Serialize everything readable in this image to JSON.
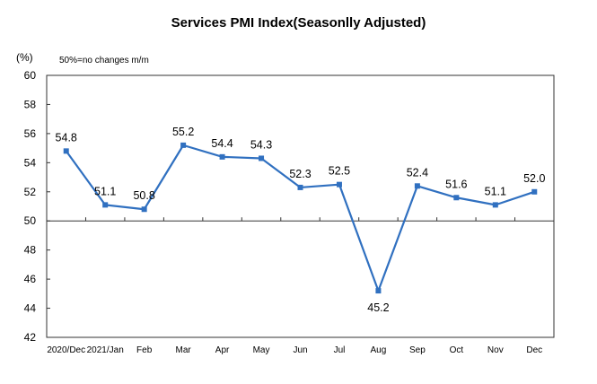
{
  "chart_data": {
    "type": "line",
    "title": "Services PMI Index(Seasonlly Adjusted)",
    "ylabel": "(%)",
    "xlabel": "",
    "annotation": "50%=no changes  m/m",
    "categories": [
      "2020/Dec",
      "2021/Jan",
      "Feb",
      "Mar",
      "Apr",
      "May",
      "Jun",
      "Jul",
      "Aug",
      "Sep",
      "Oct",
      "Nov",
      "Dec"
    ],
    "series": [
      {
        "name": "Services PMI",
        "values": [
          54.8,
          51.1,
          50.8,
          55.2,
          54.4,
          54.3,
          52.3,
          52.5,
          45.2,
          52.4,
          51.6,
          51.1,
          52.0
        ],
        "color": "#3070C0"
      }
    ],
    "data_labels": [
      "54.8",
      "51.1",
      "50.8",
      "55.2",
      "54.4",
      "54.3",
      "52.3",
      "52.5",
      "45.2",
      "52.4",
      "51.6",
      "51.1",
      "52.0"
    ],
    "data_label_positions": [
      "above",
      "above",
      "above",
      "above",
      "above",
      "above",
      "above",
      "above",
      "below",
      "above",
      "above",
      "above",
      "above"
    ],
    "yticks": [
      42,
      44,
      46,
      48,
      50,
      52,
      54,
      56,
      58,
      60
    ],
    "ylim": [
      42,
      60
    ],
    "reference_line": 50,
    "grid": false,
    "legend": "none"
  }
}
